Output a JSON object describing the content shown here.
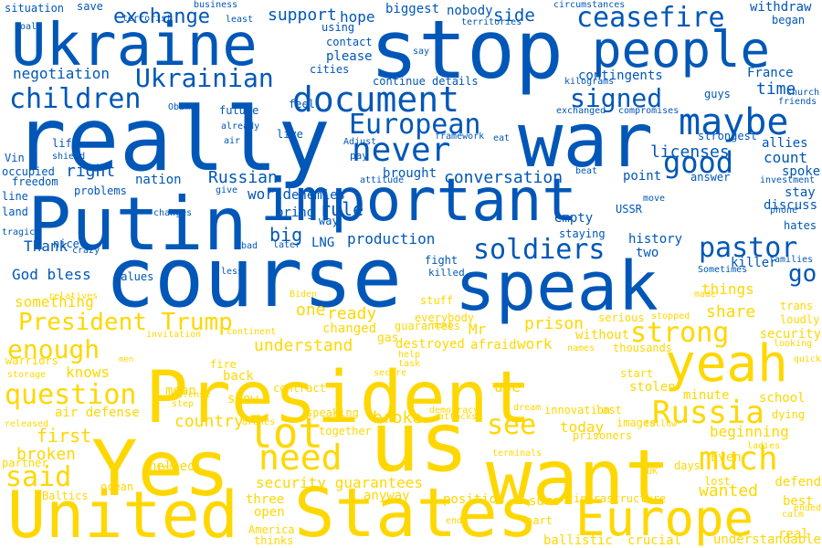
{
  "colors": {
    "blue": "#0057b7",
    "yellow": "#ffd700"
  },
  "words": [
    {
      "text": "Ukraine",
      "color": "blue"
    },
    {
      "text": "stop",
      "color": "blue"
    },
    {
      "text": "people",
      "color": "blue"
    },
    {
      "text": "really",
      "color": "blue"
    },
    {
      "text": "war",
      "color": "blue"
    },
    {
      "text": "important",
      "color": "blue"
    },
    {
      "text": "Putin",
      "color": "blue"
    },
    {
      "text": "course",
      "color": "blue"
    },
    {
      "text": "speak",
      "color": "blue"
    },
    {
      "text": "document",
      "color": "blue"
    },
    {
      "text": "never",
      "color": "blue"
    },
    {
      "text": "maybe",
      "color": "blue"
    },
    {
      "text": "ceasefire",
      "color": "blue"
    },
    {
      "text": "Ukrainian",
      "color": "blue"
    },
    {
      "text": "children",
      "color": "blue"
    },
    {
      "text": "European",
      "color": "blue"
    },
    {
      "text": "signed",
      "color": "blue"
    },
    {
      "text": "good",
      "color": "blue"
    },
    {
      "text": "soldiers",
      "color": "blue"
    },
    {
      "text": "pastor",
      "color": "blue"
    },
    {
      "text": "exchange",
      "color": "blue"
    },
    {
      "text": "support",
      "color": "blue"
    },
    {
      "text": "hope",
      "color": "blue"
    },
    {
      "text": "side",
      "color": "blue"
    },
    {
      "text": "negotiation",
      "color": "blue"
    },
    {
      "text": "licenses",
      "color": "blue"
    },
    {
      "text": "conversation",
      "color": "blue"
    },
    {
      "text": "Russian",
      "color": "blue"
    },
    {
      "text": "go",
      "color": "blue"
    },
    {
      "text": "rule",
      "color": "blue"
    },
    {
      "text": "production",
      "color": "blue"
    },
    {
      "text": "big",
      "color": "blue"
    },
    {
      "text": "LNG",
      "color": "blue"
    },
    {
      "text": "world",
      "color": "blue"
    },
    {
      "text": "nation",
      "color": "blue"
    },
    {
      "text": "right",
      "color": "blue"
    },
    {
      "text": "count",
      "color": "blue"
    },
    {
      "text": "time",
      "color": "blue"
    },
    {
      "text": "Thank",
      "color": "blue"
    },
    {
      "text": "God bless",
      "color": "blue"
    },
    {
      "text": "situation",
      "color": "blue"
    },
    {
      "text": "contingents",
      "color": "blue"
    },
    {
      "text": "occupied",
      "color": "blue"
    },
    {
      "text": "cities",
      "color": "blue"
    },
    {
      "text": "biggest",
      "color": "blue"
    },
    {
      "text": "nobody",
      "color": "blue"
    },
    {
      "text": "withdraw",
      "color": "blue"
    },
    {
      "text": "began",
      "color": "blue"
    },
    {
      "text": "allies",
      "color": "blue"
    },
    {
      "text": "spoke",
      "color": "blue"
    },
    {
      "text": "stay",
      "color": "blue"
    },
    {
      "text": "discuss",
      "color": "blue"
    },
    {
      "text": "hates",
      "color": "blue"
    },
    {
      "text": "killer",
      "color": "blue"
    },
    {
      "text": "history",
      "color": "blue"
    },
    {
      "text": "fight",
      "color": "blue"
    },
    {
      "text": "two",
      "color": "blue"
    },
    {
      "text": "empty",
      "color": "blue"
    },
    {
      "text": "staying",
      "color": "blue"
    },
    {
      "text": "point",
      "color": "blue"
    },
    {
      "text": "answer",
      "color": "blue"
    },
    {
      "text": "brought",
      "color": "blue"
    },
    {
      "text": "enemies",
      "color": "blue"
    },
    {
      "text": "bring",
      "color": "blue"
    },
    {
      "text": "way",
      "color": "blue"
    },
    {
      "text": "problems",
      "color": "blue"
    },
    {
      "text": "land",
      "color": "blue"
    },
    {
      "text": "line",
      "color": "blue"
    },
    {
      "text": "freedom",
      "color": "blue"
    },
    {
      "text": "life",
      "color": "blue"
    },
    {
      "text": "nice",
      "color": "blue"
    },
    {
      "text": "killed",
      "color": "blue"
    },
    {
      "text": "please",
      "color": "blue"
    },
    {
      "text": "contact",
      "color": "blue"
    },
    {
      "text": "using",
      "color": "blue"
    },
    {
      "text": "future",
      "color": "blue"
    },
    {
      "text": "feel",
      "color": "blue"
    },
    {
      "text": "live",
      "color": "blue"
    },
    {
      "text": "France",
      "color": "blue"
    },
    {
      "text": "guys",
      "color": "blue"
    },
    {
      "text": "strongest",
      "color": "blue"
    },
    {
      "text": "USSR",
      "color": "blue"
    },
    {
      "text": "Vin",
      "color": "blue"
    },
    {
      "text": "save",
      "color": "blue"
    },
    {
      "text": "business",
      "color": "blue"
    },
    {
      "text": "terrorist",
      "color": "blue"
    },
    {
      "text": "least",
      "color": "blue"
    },
    {
      "text": "territories",
      "color": "blue"
    },
    {
      "text": "circumstances",
      "color": "blue"
    },
    {
      "text": "goal",
      "color": "blue"
    },
    {
      "text": "say",
      "color": "blue"
    },
    {
      "text": "continue details",
      "color": "blue"
    },
    {
      "text": "kilograms",
      "color": "blue"
    },
    {
      "text": "exchanged",
      "color": "blue"
    },
    {
      "text": "compromises",
      "color": "blue"
    },
    {
      "text": "church",
      "color": "blue"
    },
    {
      "text": "friends",
      "color": "blue"
    },
    {
      "text": "Obama",
      "color": "blue"
    },
    {
      "text": "already",
      "color": "blue"
    },
    {
      "text": "air",
      "color": "blue"
    },
    {
      "text": "framework",
      "color": "blue"
    },
    {
      "text": "eat",
      "color": "blue"
    },
    {
      "text": "Adjust",
      "color": "blue"
    },
    {
      "text": "pay",
      "color": "blue"
    },
    {
      "text": "attitude",
      "color": "blue"
    },
    {
      "text": "beat",
      "color": "blue"
    },
    {
      "text": "investment",
      "color": "blue"
    },
    {
      "text": "shield",
      "color": "blue"
    },
    {
      "text": "give",
      "color": "blue"
    },
    {
      "text": "changes",
      "color": "blue"
    },
    {
      "text": "tragic",
      "color": "blue"
    },
    {
      "text": "crazy",
      "color": "blue"
    },
    {
      "text": "bad",
      "color": "blue"
    },
    {
      "text": "later",
      "color": "blue"
    },
    {
      "text": "move",
      "color": "blue"
    },
    {
      "text": "phone",
      "color": "blue"
    },
    {
      "text": "families",
      "color": "blue"
    },
    {
      "text": "Sometimes",
      "color": "blue"
    },
    {
      "text": "values",
      "color": "blue"
    },
    {
      "text": "less",
      "color": "blue"
    },
    {
      "text": "President",
      "color": "yellow"
    },
    {
      "text": "Yes",
      "color": "yellow"
    },
    {
      "text": "us",
      "color": "yellow"
    },
    {
      "text": "want",
      "color": "yellow"
    },
    {
      "text": "United",
      "color": "yellow"
    },
    {
      "text": "States",
      "color": "yellow"
    },
    {
      "text": "Europe",
      "color": "yellow"
    },
    {
      "text": "yeah",
      "color": "yellow"
    },
    {
      "text": "much",
      "color": "yellow"
    },
    {
      "text": "lot",
      "color": "yellow"
    },
    {
      "text": "need",
      "color": "yellow"
    },
    {
      "text": "Russia",
      "color": "yellow"
    },
    {
      "text": "strong",
      "color": "yellow"
    },
    {
      "text": "President Trump",
      "color": "yellow"
    },
    {
      "text": "enough",
      "color": "yellow"
    },
    {
      "text": "question",
      "color": "yellow"
    },
    {
      "text": "said",
      "color": "yellow"
    },
    {
      "text": "see",
      "color": "yellow"
    },
    {
      "text": "first",
      "color": "yellow"
    },
    {
      "text": "broken",
      "color": "yellow"
    },
    {
      "text": "broke",
      "color": "yellow"
    },
    {
      "text": "prison",
      "color": "yellow"
    },
    {
      "text": "Mr",
      "color": "yellow"
    },
    {
      "text": "share",
      "color": "yellow"
    },
    {
      "text": "things",
      "color": "yellow"
    },
    {
      "text": "wanted",
      "color": "yellow"
    },
    {
      "text": "country",
      "color": "yellow"
    },
    {
      "text": "today",
      "color": "yellow"
    },
    {
      "text": "beginning",
      "color": "yellow"
    },
    {
      "text": "ready",
      "color": "yellow"
    },
    {
      "text": "understand",
      "color": "yellow"
    },
    {
      "text": "knows",
      "color": "yellow"
    },
    {
      "text": "work",
      "color": "yellow"
    },
    {
      "text": "use",
      "color": "yellow"
    },
    {
      "text": "one",
      "color": "yellow"
    },
    {
      "text": "something",
      "color": "yellow"
    },
    {
      "text": "changed",
      "color": "yellow"
    },
    {
      "text": "air defense",
      "color": "yellow"
    },
    {
      "text": "security guarantees",
      "color": "yellow"
    },
    {
      "text": "helped",
      "color": "yellow"
    },
    {
      "text": "anyway",
      "color": "yellow"
    },
    {
      "text": "three",
      "color": "yellow"
    },
    {
      "text": "open",
      "color": "yellow"
    },
    {
      "text": "ocean",
      "color": "yellow"
    },
    {
      "text": "position",
      "color": "yellow"
    },
    {
      "text": "sure",
      "color": "yellow"
    },
    {
      "text": "part",
      "color": "yellow"
    },
    {
      "text": "ballistic",
      "color": "yellow"
    },
    {
      "text": "crucial",
      "color": "yellow"
    },
    {
      "text": "infrastructure",
      "color": "yellow"
    },
    {
      "text": "understandable",
      "color": "yellow"
    },
    {
      "text": "best",
      "color": "yellow"
    },
    {
      "text": "real",
      "color": "yellow"
    },
    {
      "text": "defend",
      "color": "yellow"
    },
    {
      "text": "lost",
      "color": "yellow"
    },
    {
      "text": "days",
      "color": "yellow"
    },
    {
      "text": "Even",
      "color": "yellow"
    },
    {
      "text": "minute",
      "color": "yellow"
    },
    {
      "text": "school",
      "color": "yellow"
    },
    {
      "text": "dying",
      "color": "yellow"
    },
    {
      "text": "stolen",
      "color": "yellow"
    },
    {
      "text": "start",
      "color": "yellow"
    },
    {
      "text": "thousands",
      "color": "yellow"
    },
    {
      "text": "security",
      "color": "yellow"
    },
    {
      "text": "loudly",
      "color": "yellow"
    },
    {
      "text": "trans",
      "color": "yellow"
    },
    {
      "text": "serious",
      "color": "yellow"
    },
    {
      "text": "stopped",
      "color": "yellow"
    },
    {
      "text": "without",
      "color": "yellow"
    },
    {
      "text": "afraid",
      "color": "yellow"
    },
    {
      "text": "destroyed",
      "color": "yellow"
    },
    {
      "text": "gas",
      "color": "yellow"
    },
    {
      "text": "guarantees",
      "color": "yellow"
    },
    {
      "text": "everybody",
      "color": "yellow"
    },
    {
      "text": "stuff",
      "color": "yellow"
    },
    {
      "text": "fire",
      "color": "yellow"
    },
    {
      "text": "back",
      "color": "yellow"
    },
    {
      "text": "mean",
      "color": "yellow"
    },
    {
      "text": "show",
      "color": "yellow"
    },
    {
      "text": "contract",
      "color": "yellow"
    },
    {
      "text": "speaking",
      "color": "yellow"
    },
    {
      "text": "together",
      "color": "yellow"
    },
    {
      "text": "democracy",
      "color": "yellow"
    },
    {
      "text": "attacks",
      "color": "yellow"
    },
    {
      "text": "terminals",
      "color": "yellow"
    },
    {
      "text": "innovation",
      "color": "yellow"
    },
    {
      "text": "last",
      "color": "yellow"
    },
    {
      "text": "images",
      "color": "yellow"
    },
    {
      "text": "prisoners",
      "color": "yellow"
    },
    {
      "text": "dream",
      "color": "yellow"
    },
    {
      "text": "warriors",
      "color": "yellow"
    },
    {
      "text": "storage",
      "color": "yellow"
    },
    {
      "text": "partner",
      "color": "yellow"
    },
    {
      "text": "released",
      "color": "yellow"
    },
    {
      "text": "Baltics",
      "color": "yellow"
    },
    {
      "text": "left",
      "color": "yellow"
    },
    {
      "text": "America",
      "color": "yellow"
    },
    {
      "text": "thinks",
      "color": "yellow"
    },
    {
      "text": "end",
      "color": "yellow"
    },
    {
      "text": "UK",
      "color": "yellow"
    },
    {
      "text": "follow",
      "color": "yellow"
    },
    {
      "text": "ended",
      "color": "yellow"
    },
    {
      "text": "calm",
      "color": "yellow"
    },
    {
      "text": "ladies",
      "color": "yellow"
    },
    {
      "text": "quick",
      "color": "yellow"
    },
    {
      "text": "looking",
      "color": "yellow"
    },
    {
      "text": "names",
      "color": "yellow"
    },
    {
      "text": "made",
      "color": "yellow"
    },
    {
      "text": "relatives",
      "color": "yellow"
    },
    {
      "text": "Biden",
      "color": "yellow"
    },
    {
      "text": "invitation",
      "color": "yellow"
    },
    {
      "text": "continent",
      "color": "yellow"
    },
    {
      "text": "men",
      "color": "yellow"
    },
    {
      "text": "secure",
      "color": "yellow"
    },
    {
      "text": "task",
      "color": "yellow"
    },
    {
      "text": "help",
      "color": "yellow"
    },
    {
      "text": "step",
      "color": "yellow"
    },
    {
      "text": "defense",
      "color": "yellow"
    },
    {
      "text": "drones",
      "color": "yellow"
    },
    {
      "text": "next",
      "color": "yellow"
    }
  ]
}
